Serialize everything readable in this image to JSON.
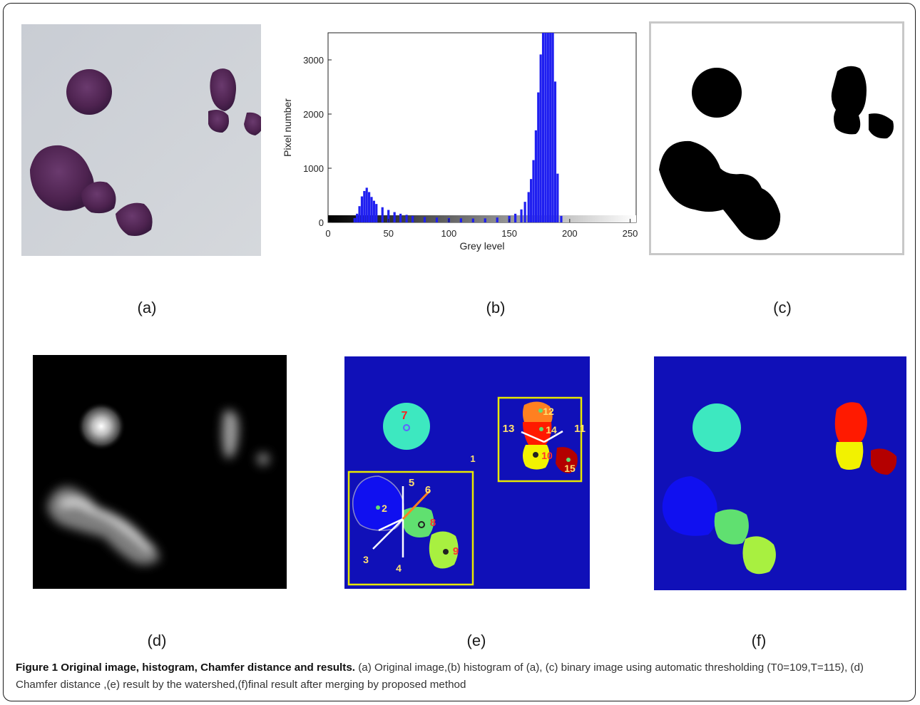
{
  "panels": {
    "a": {
      "label": "(a)"
    },
    "b": {
      "label": "(b)"
    },
    "c": {
      "label": "(c)"
    },
    "d": {
      "label": "(d)"
    },
    "e": {
      "label": "(e)"
    },
    "f": {
      "label": "(f)"
    }
  },
  "histogram": {
    "type": "bar",
    "xlabel": "Grey level",
    "ylabel": "Pixel number",
    "xlim": [
      0,
      255
    ],
    "ylim": [
      0,
      3500
    ],
    "xticks": [
      0,
      50,
      100,
      150,
      200,
      250
    ],
    "yticks": [
      0,
      1000,
      2000,
      3000
    ],
    "bar_color": "#1f1ff0",
    "x": [
      22,
      24,
      26,
      28,
      30,
      32,
      34,
      36,
      38,
      40,
      45,
      50,
      55,
      60,
      65,
      70,
      80,
      90,
      100,
      110,
      120,
      130,
      140,
      150,
      155,
      160,
      163,
      166,
      168,
      170,
      172,
      174,
      176,
      178,
      180,
      182,
      184,
      186,
      188,
      190,
      193
    ],
    "values": [
      80,
      160,
      300,
      480,
      580,
      640,
      560,
      470,
      400,
      340,
      280,
      230,
      190,
      160,
      140,
      120,
      100,
      90,
      80,
      75,
      72,
      75,
      90,
      120,
      160,
      240,
      380,
      560,
      800,
      1150,
      1700,
      2400,
      3100,
      3500,
      3500,
      3500,
      3500,
      3500,
      2600,
      900,
      120
    ]
  },
  "watershed": {
    "labels": [
      "7",
      "12",
      "14",
      "10",
      "15",
      "11",
      "13",
      "1",
      "2",
      "8",
      "9",
      "5",
      "6",
      "3",
      "4"
    ]
  },
  "caption": {
    "bold": "Figure 1 Original image, histogram, Chamfer distance and results.",
    "text": " (a) Original image,(b) histogram of (a), (c) binary image using automatic thresholding (T0=109,T=115), (d) Chamfer distance ,(e) result by the watershed,(f)final result after merging by proposed method"
  }
}
